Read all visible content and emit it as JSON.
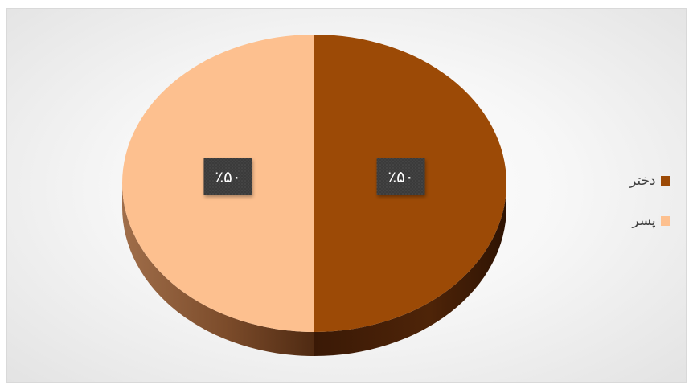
{
  "chart_data": {
    "type": "pie",
    "title": "",
    "categories": [
      "دختر",
      "پسر"
    ],
    "values": [
      50,
      50
    ],
    "data_labels": [
      "٪۵۰",
      "٪۵۰"
    ],
    "colors": [
      "#9c4a06",
      "#fdc08f"
    ],
    "legend_position": "right",
    "style": "3d"
  },
  "legend": {
    "items": [
      {
        "label": "دختر",
        "color": "#9c4a06"
      },
      {
        "label": "پسر",
        "color": "#fdc08f"
      }
    ]
  }
}
